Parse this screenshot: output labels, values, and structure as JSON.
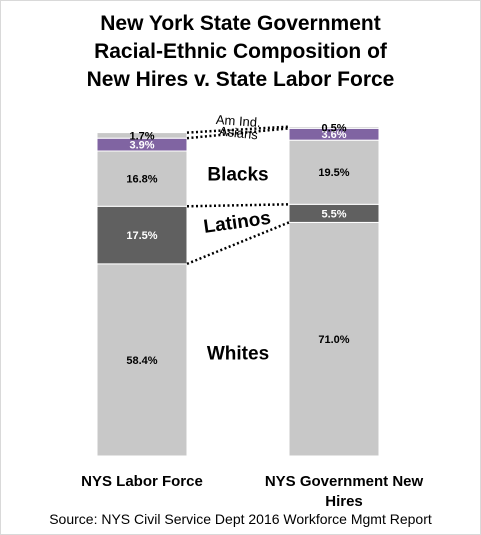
{
  "chart_data": {
    "type": "bar",
    "stacked": true,
    "title_lines": [
      "New York State Government",
      "Racial-Ethnic Composition of",
      "New Hires v. State Labor Force"
    ],
    "categories": [
      "NYS Labor Force",
      "NYS Government New Hires"
    ],
    "series": [
      {
        "name": "Whites",
        "values": [
          58.4,
          71.0
        ],
        "labels": [
          "58.4%",
          "71.0%"
        ],
        "color": "#c8c8c8",
        "label_color": "#000000"
      },
      {
        "name": "Latinos",
        "values": [
          17.5,
          5.5
        ],
        "labels": [
          "17.5%",
          "5.5%"
        ],
        "color": "#606060",
        "label_color": "#ffffff"
      },
      {
        "name": "Blacks",
        "values": [
          16.8,
          19.5
        ],
        "labels": [
          "16.8%",
          "19.5%"
        ],
        "color": "#c8c8c8",
        "label_color": "#000000"
      },
      {
        "name": "Asians",
        "values": [
          3.9,
          3.6
        ],
        "labels": [
          "3.9%",
          "3.6%"
        ],
        "color": "#8064a2",
        "label_color": "#ffffff"
      },
      {
        "name": "Am Ind.",
        "values": [
          1.7,
          0.5
        ],
        "labels": [
          "1.7%",
          "0.5%"
        ],
        "color": "#c8c8c8",
        "label_color": "#000000"
      }
    ],
    "ylim": [
      0,
      100
    ],
    "legend": "inline between bars",
    "grid": false,
    "source": "Source: NYS Civil Service Dept 2016 Workforce Mgmt Report"
  }
}
